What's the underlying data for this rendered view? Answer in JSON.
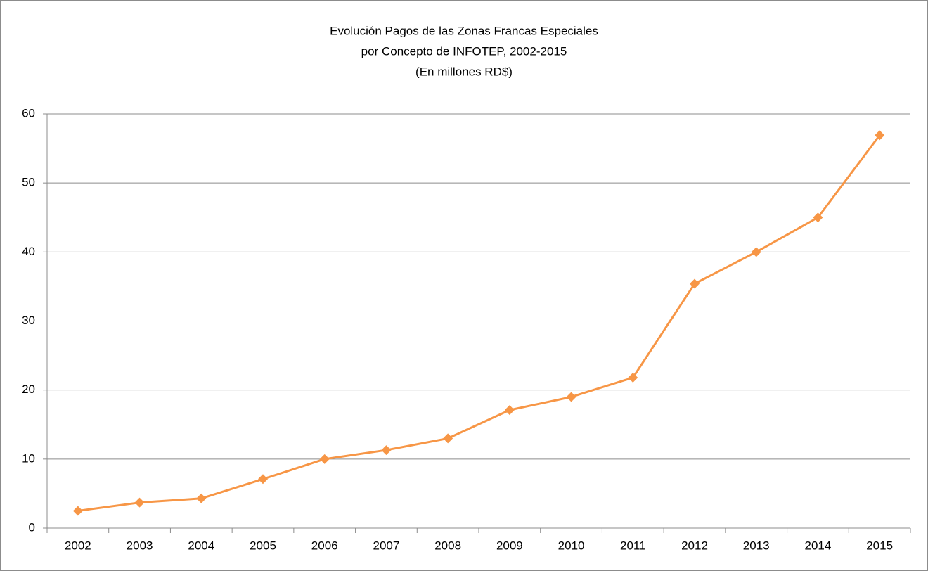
{
  "chart_data": {
    "type": "line",
    "title": [
      "Evolución Pagos de las Zonas Francas Especiales",
      "por Concepto de INFOTEP, 2002-2015",
      "(En millones RD$)"
    ],
    "categories": [
      "2002",
      "2003",
      "2004",
      "2005",
      "2006",
      "2007",
      "2008",
      "2009",
      "2010",
      "2011",
      "2012",
      "2013",
      "2014",
      "2015"
    ],
    "values": [
      2.5,
      3.7,
      4.3,
      7.1,
      10,
      11.3,
      13,
      17.1,
      19,
      21.8,
      35.4,
      40,
      45,
      56.9
    ],
    "color": "#f79646",
    "ylim": [
      0,
      60
    ],
    "yticks": [
      0,
      10,
      20,
      30,
      40,
      50,
      60
    ],
    "grid": true
  }
}
